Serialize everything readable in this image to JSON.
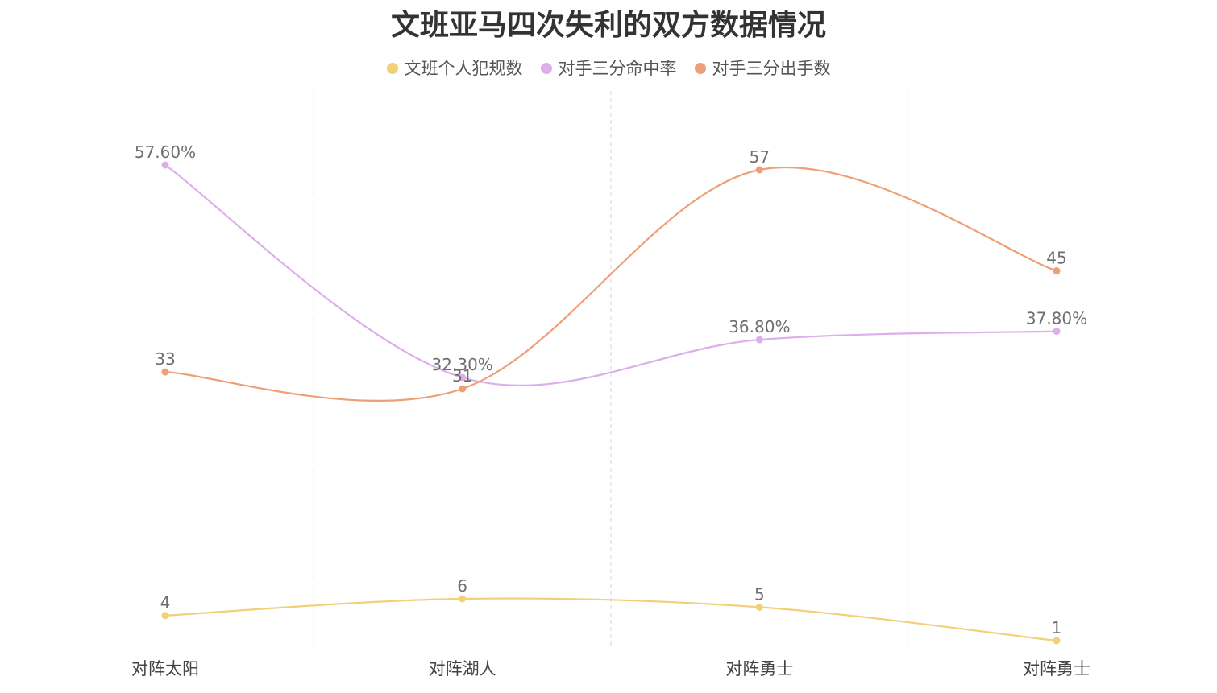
{
  "chart_data": {
    "type": "line",
    "title": "文班亚马四次失利的双方数据情况",
    "categories": [
      "对阵太阳",
      "对阵湖人",
      "对阵勇士",
      "对阵勇士"
    ],
    "series": [
      {
        "name": "文班个人犯规数",
        "values": [
          4,
          6,
          5,
          1
        ],
        "labels": [
          "4",
          "6",
          "5",
          "1"
        ],
        "color": "#f2d077"
      },
      {
        "name": "对手三分命中率",
        "values": [
          57.6,
          32.3,
          36.8,
          37.8
        ],
        "labels": [
          "57.60%",
          "32.30%",
          "36.80%",
          "37.80%"
        ],
        "color": "#dcaeea"
      },
      {
        "name": "对手三分出手数",
        "values": [
          33,
          31,
          57,
          45
        ],
        "labels": [
          "33",
          "31",
          "57",
          "45"
        ],
        "color": "#ef9f76"
      }
    ],
    "legend_position": "top-center",
    "grid": "vertical-dashed",
    "smooth": true
  }
}
